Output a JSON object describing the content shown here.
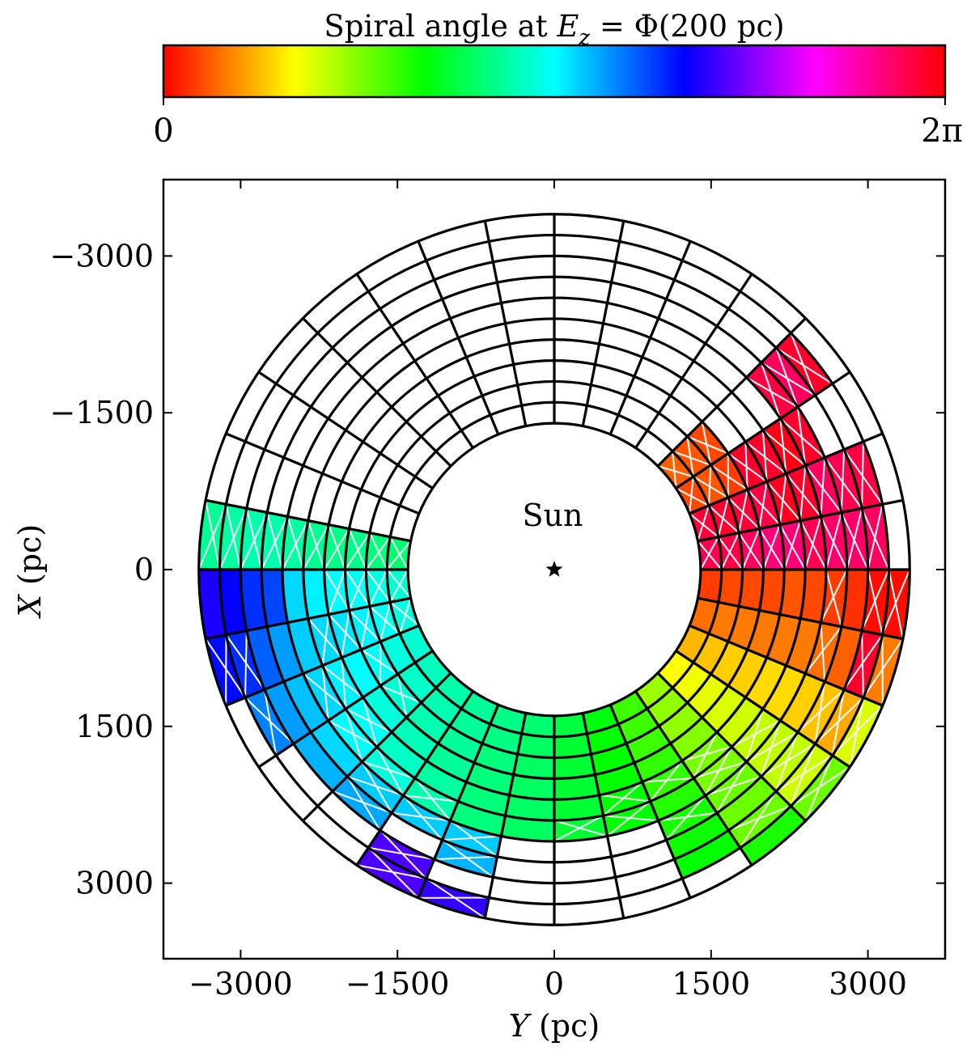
{
  "chart_data": {
    "type": "heatmap",
    "title": "Spiral angle at E_z = Φ(200 pc)",
    "title_parts": {
      "prefix": "Spiral angle at ",
      "var": "E",
      "sub": "z",
      "suffix": " = Φ(200 pc)"
    },
    "colorbar": {
      "min_label": "0",
      "max_label": "2π",
      "range": [
        0,
        6.2832
      ],
      "colormap": "hsv",
      "stops": [
        "#ff0000",
        "#ffff00",
        "#00ff00",
        "#00ffff",
        "#0000ff",
        "#ff00ff",
        "#ff0000"
      ]
    },
    "xlabel": "Y (pc)",
    "ylabel": "X (pc)",
    "xlim": [
      -3700,
      3700
    ],
    "ylim": [
      -3500,
      3700
    ],
    "y_inverted": true,
    "xticks": [
      -3000,
      -1500,
      0,
      1500,
      3000
    ],
    "xtick_labels": [
      "−3000",
      "−1500",
      "0",
      "1500",
      "3000"
    ],
    "yticks": [
      -3000,
      -1500,
      0,
      1500,
      3000
    ],
    "ytick_labels": [
      "−3000",
      "−1500",
      "0",
      "1500",
      "3000"
    ],
    "annotation": "Sun",
    "sun_position": [
      0,
      0
    ],
    "grid": {
      "r_edges": [
        1400,
        1600,
        1800,
        2000,
        2200,
        2400,
        2600,
        2800,
        3000,
        3200,
        3400
      ],
      "n_theta": 32,
      "theta_unit": "degrees measured clockwise from +Y (right) on screen"
    },
    "cells": [
      {
        "r": 0,
        "t": 0,
        "phase": 0.25
      },
      {
        "r": 0,
        "t": 1,
        "phase": 0.45
      },
      {
        "r": 0,
        "t": 2,
        "phase": 0.75
      },
      {
        "r": 0,
        "t": 3,
        "phase": 1.05
      },
      {
        "r": 0,
        "t": 4,
        "phase": 1.45
      },
      {
        "r": 0,
        "t": 5,
        "phase": 1.85
      },
      {
        "r": 0,
        "t": 6,
        "phase": 2.15
      },
      {
        "r": 0,
        "t": 7,
        "phase": 2.35
      },
      {
        "r": 0,
        "t": 8,
        "phase": 2.55
      },
      {
        "r": 0,
        "t": 9,
        "phase": 2.65
      },
      {
        "r": 0,
        "t": 10,
        "phase": 2.72
      },
      {
        "r": 0,
        "t": 11,
        "phase": 2.8
      },
      {
        "r": 0,
        "t": 12,
        "phase": 2.88
      },
      {
        "r": 0,
        "t": 13,
        "phase": 2.96
      },
      {
        "r": 0,
        "t": 14,
        "phase": 3.02,
        "hatched": true
      },
      {
        "r": 0,
        "t": 15,
        "phase": 2.95,
        "hatched": true
      },
      {
        "r": 0,
        "t": 16,
        "phase": 2.55,
        "hatched": true
      },
      {
        "r": 1,
        "t": 0,
        "phase": 0.3
      },
      {
        "r": 1,
        "t": 1,
        "phase": 0.5
      },
      {
        "r": 1,
        "t": 2,
        "phase": 0.8
      },
      {
        "r": 1,
        "t": 3,
        "phase": 1.1
      },
      {
        "r": 1,
        "t": 4,
        "phase": 1.5
      },
      {
        "r": 1,
        "t": 5,
        "phase": 1.85
      },
      {
        "r": 1,
        "t": 6,
        "phase": 2.1
      },
      {
        "r": 1,
        "t": 7,
        "phase": 2.3
      },
      {
        "r": 1,
        "t": 8,
        "phase": 2.5
      },
      {
        "r": 1,
        "t": 9,
        "phase": 2.62
      },
      {
        "r": 1,
        "t": 10,
        "phase": 2.72
      },
      {
        "r": 1,
        "t": 11,
        "phase": 2.82
      },
      {
        "r": 1,
        "t": 12,
        "phase": 2.92
      },
      {
        "r": 1,
        "t": 13,
        "phase": 3.02
      },
      {
        "r": 1,
        "t": 14,
        "phase": 3.1,
        "hatched": true
      },
      {
        "r": 1,
        "t": 15,
        "phase": 3.05,
        "hatched": true
      },
      {
        "r": 1,
        "t": 16,
        "phase": 2.6,
        "hatched": true
      },
      {
        "r": 2,
        "t": 0,
        "phase": 0.3
      },
      {
        "r": 2,
        "t": 1,
        "phase": 0.5
      },
      {
        "r": 2,
        "t": 2,
        "phase": 0.85
      },
      {
        "r": 2,
        "t": 3,
        "phase": 1.15
      },
      {
        "r": 2,
        "t": 4,
        "phase": 1.5
      },
      {
        "r": 2,
        "t": 5,
        "phase": 1.85
      },
      {
        "r": 2,
        "t": 6,
        "phase": 2.1
      },
      {
        "r": 2,
        "t": 7,
        "phase": 2.3
      },
      {
        "r": 2,
        "t": 8,
        "phase": 2.5
      },
      {
        "r": 2,
        "t": 9,
        "phase": 2.6
      },
      {
        "r": 2,
        "t": 10,
        "phase": 2.72
      },
      {
        "r": 2,
        "t": 11,
        "phase": 2.82
      },
      {
        "r": 2,
        "t": 12,
        "phase": 2.95,
        "hatched": true
      },
      {
        "r": 2,
        "t": 13,
        "phase": 3.1,
        "hatched": true
      },
      {
        "r": 2,
        "t": 14,
        "phase": 3.2,
        "hatched": true
      },
      {
        "r": 2,
        "t": 15,
        "phase": 3.1,
        "hatched": true
      },
      {
        "r": 2,
        "t": 16,
        "phase": 2.65,
        "hatched": true
      },
      {
        "r": 3,
        "t": 0,
        "phase": 0.3
      },
      {
        "r": 3,
        "t": 1,
        "phase": 0.5
      },
      {
        "r": 3,
        "t": 2,
        "phase": 0.85
      },
      {
        "r": 3,
        "t": 3,
        "phase": 1.2
      },
      {
        "r": 3,
        "t": 4,
        "phase": 1.55
      },
      {
        "r": 3,
        "t": 5,
        "phase": 1.9
      },
      {
        "r": 3,
        "t": 6,
        "phase": 2.1
      },
      {
        "r": 3,
        "t": 7,
        "phase": 2.3
      },
      {
        "r": 3,
        "t": 8,
        "phase": 2.5
      },
      {
        "r": 3,
        "t": 9,
        "phase": 2.6
      },
      {
        "r": 3,
        "t": 10,
        "phase": 2.72
      },
      {
        "r": 3,
        "t": 11,
        "phase": 2.85
      },
      {
        "r": 3,
        "t": 12,
        "phase": 3.0
      },
      {
        "r": 3,
        "t": 13,
        "phase": 3.15
      },
      {
        "r": 3,
        "t": 14,
        "phase": 3.25,
        "hatched": true
      },
      {
        "r": 3,
        "t": 15,
        "phase": 3.15,
        "hatched": true
      },
      {
        "r": 3,
        "t": 16,
        "phase": 2.65,
        "hatched": true
      },
      {
        "r": 4,
        "t": 0,
        "phase": 0.35
      },
      {
        "r": 4,
        "t": 1,
        "phase": 0.5
      },
      {
        "r": 4,
        "t": 2,
        "phase": 0.9
      },
      {
        "r": 4,
        "t": 3,
        "phase": 1.25
      },
      {
        "r": 4,
        "t": 4,
        "phase": 1.6,
        "hatched": true
      },
      {
        "r": 4,
        "t": 5,
        "phase": 1.9,
        "hatched": true
      },
      {
        "r": 4,
        "t": 6,
        "phase": 2.1,
        "hatched": true
      },
      {
        "r": 4,
        "t": 7,
        "phase": 2.3
      },
      {
        "r": 4,
        "t": 8,
        "phase": 2.5
      },
      {
        "r": 4,
        "t": 9,
        "phase": 2.6
      },
      {
        "r": 4,
        "t": 10,
        "phase": 2.75
      },
      {
        "r": 4,
        "t": 11,
        "phase": 2.9
      },
      {
        "r": 4,
        "t": 12,
        "phase": 3.1,
        "hatched": true
      },
      {
        "r": 4,
        "t": 13,
        "phase": 3.2,
        "hatched": true
      },
      {
        "r": 4,
        "t": 14,
        "phase": 3.3,
        "hatched": true
      },
      {
        "r": 4,
        "t": 15,
        "phase": 3.2
      },
      {
        "r": 4,
        "t": 16,
        "phase": 2.7,
        "hatched": true
      },
      {
        "r": 5,
        "t": 0,
        "phase": 0.3
      },
      {
        "r": 5,
        "t": 1,
        "phase": 0.5
      },
      {
        "r": 5,
        "t": 2,
        "phase": 0.9
      },
      {
        "r": 5,
        "t": 3,
        "phase": 1.3,
        "hatched": true
      },
      {
        "r": 5,
        "t": 4,
        "phase": 1.6,
        "hatched": true
      },
      {
        "r": 5,
        "t": 5,
        "phase": 1.95
      },
      {
        "r": 5,
        "t": 6,
        "phase": 2.1,
        "hatched": true
      },
      {
        "r": 5,
        "t": 7,
        "phase": 2.3,
        "hatched": true
      },
      {
        "r": 5,
        "t": 8,
        "phase": 2.5
      },
      {
        "r": 5,
        "t": 9,
        "phase": 2.6
      },
      {
        "r": 5,
        "t": 10,
        "phase": 2.8,
        "hatched": true
      },
      {
        "r": 5,
        "t": 11,
        "phase": 3.0,
        "hatched": true
      },
      {
        "r": 5,
        "t": 12,
        "phase": 3.15,
        "hatched": true
      },
      {
        "r": 5,
        "t": 13,
        "phase": 3.3,
        "hatched": true
      },
      {
        "r": 5,
        "t": 14,
        "phase": 3.35
      },
      {
        "r": 5,
        "t": 15,
        "phase": 3.3
      },
      {
        "r": 5,
        "t": 16,
        "phase": 2.75,
        "hatched": true
      },
      {
        "r": 6,
        "t": 0,
        "phase": 0.25,
        "hatched": true
      },
      {
        "r": 6,
        "t": 1,
        "phase": 0.45,
        "hatched": true
      },
      {
        "r": 6,
        "t": 2,
        "phase": 0.85
      },
      {
        "r": 6,
        "t": 3,
        "phase": 1.3,
        "hatched": true
      },
      {
        "r": 6,
        "t": 4,
        "phase": 1.65,
        "hatched": true
      },
      {
        "r": 6,
        "t": 5,
        "phase": 2.0,
        "hatched": true
      },
      {
        "r": 6,
        "t": 9,
        "phase": 3.35,
        "hatched": true
      },
      {
        "r": 6,
        "t": 10,
        "phase": 3.35,
        "hatched": true
      },
      {
        "r": 6,
        "t": 11,
        "phase": 3.35,
        "hatched": true
      },
      {
        "r": 6,
        "t": 12,
        "phase": 3.3
      },
      {
        "r": 6,
        "t": 13,
        "phase": 3.4
      },
      {
        "r": 6,
        "t": 14,
        "phase": 3.55
      },
      {
        "r": 6,
        "t": 15,
        "phase": 3.9
      },
      {
        "r": 6,
        "t": 16,
        "phase": 2.8,
        "hatched": true
      },
      {
        "r": 7,
        "t": 0,
        "phase": 0.2
      },
      {
        "r": 7,
        "t": 1,
        "phase": 0.4
      },
      {
        "r": 7,
        "t": 2,
        "phase": 0.8,
        "hatched": true
      },
      {
        "r": 7,
        "t": 3,
        "phase": 1.3,
        "hatched": true
      },
      {
        "r": 7,
        "t": 4,
        "phase": 1.65
      },
      {
        "r": 7,
        "t": 5,
        "phase": 2.05
      },
      {
        "r": 7,
        "t": 9,
        "phase": 3.45,
        "hatched": true
      },
      {
        "r": 7,
        "t": 11,
        "phase": 3.5,
        "hatched": true
      },
      {
        "r": 7,
        "t": 12,
        "phase": 3.45
      },
      {
        "r": 7,
        "t": 13,
        "phase": 3.55
      },
      {
        "r": 7,
        "t": 14,
        "phase": 3.8
      },
      {
        "r": 7,
        "t": 15,
        "phase": 4.0
      },
      {
        "r": 7,
        "t": 16,
        "phase": 2.8,
        "hatched": true
      },
      {
        "r": 8,
        "t": 0,
        "phase": 0.05,
        "hatched": true
      },
      {
        "r": 8,
        "t": 1,
        "phase": 6.1,
        "hatched": true
      },
      {
        "r": 8,
        "t": 2,
        "phase": 0.7,
        "hatched": true
      },
      {
        "r": 8,
        "t": 3,
        "phase": 1.25,
        "hatched": true
      },
      {
        "r": 8,
        "t": 4,
        "phase": 1.65,
        "hatched": true
      },
      {
        "r": 8,
        "t": 5,
        "phase": 2.1
      },
      {
        "r": 8,
        "t": 10,
        "phase": 4.5,
        "hatched": true
      },
      {
        "r": 8,
        "t": 13,
        "phase": 3.65,
        "hatched": true
      },
      {
        "r": 8,
        "t": 14,
        "phase": 4.0,
        "hatched": true
      },
      {
        "r": 8,
        "t": 15,
        "phase": 4.2
      },
      {
        "r": 8,
        "t": 16,
        "phase": 2.75,
        "hatched": true
      },
      {
        "r": 9,
        "t": 0,
        "phase": 0.05,
        "hatched": true
      },
      {
        "r": 9,
        "t": 1,
        "phase": 0.5,
        "hatched": true
      },
      {
        "r": 9,
        "t": 2,
        "phase": 1.2,
        "hatched": true
      },
      {
        "r": 9,
        "t": 3,
        "phase": 1.65,
        "hatched": true
      },
      {
        "r": 9,
        "t": 4,
        "phase": 2.0
      },
      {
        "r": 9,
        "t": 9,
        "phase": 4.4,
        "hatched": true
      },
      {
        "r": 9,
        "t": 10,
        "phase": 4.5,
        "hatched": true
      },
      {
        "r": 9,
        "t": 14,
        "phase": 4.15,
        "hatched": true
      },
      {
        "r": 9,
        "t": 15,
        "phase": 4.3
      },
      {
        "r": 9,
        "t": 16,
        "phase": 2.7,
        "hatched": true
      },
      {
        "r": 10,
        "t": 0,
        "phase": 0.35,
        "hatched": true
      },
      {
        "r": 10,
        "t": 1,
        "phase": 0.55,
        "hatched": true
      },
      {
        "r": 10,
        "t": 9,
        "phase": 4.7,
        "hatched": true
      },
      {
        "r": 10,
        "t": 10,
        "phase": 4.6,
        "hatched": true
      },
      {
        "r": 10,
        "t": 12,
        "phase": 4.85,
        "hatched": true
      },
      {
        "r": 10,
        "t": 16,
        "phase": 2.5,
        "hatched": true
      },
      {
        "r": 0,
        "t": 31,
        "phase": 5.95,
        "hatched": true
      },
      {
        "r": 1,
        "t": 31,
        "phase": 6.0,
        "hatched": true
      },
      {
        "r": 2,
        "t": 31,
        "phase": 5.9,
        "hatched": true
      },
      {
        "r": 3,
        "t": 31,
        "phase": 5.8,
        "hatched": true
      },
      {
        "r": 4,
        "t": 31,
        "phase": 5.8,
        "hatched": true
      },
      {
        "r": 5,
        "t": 31,
        "phase": 5.95,
        "hatched": true
      },
      {
        "r": 6,
        "t": 31,
        "phase": 5.85,
        "hatched": true
      },
      {
        "r": 7,
        "t": 31,
        "phase": 5.85,
        "hatched": true
      },
      {
        "r": 8,
        "t": 31,
        "phase": 5.9,
        "hatched": true
      },
      {
        "r": 8,
        "t": 30,
        "phase": 6.0,
        "hatched": true
      },
      {
        "r": 7,
        "t": 30,
        "phase": 5.95,
        "hatched": true
      },
      {
        "r": 6,
        "t": 30,
        "phase": 5.9,
        "hatched": true
      },
      {
        "r": 5,
        "t": 30,
        "phase": 6.1,
        "hatched": true
      },
      {
        "r": 4,
        "t": 30,
        "phase": 6.15,
        "hatched": true
      },
      {
        "r": 3,
        "t": 30,
        "phase": 6.0,
        "hatched": true
      },
      {
        "r": 2,
        "t": 30,
        "phase": 6.05,
        "hatched": true
      },
      {
        "r": 1,
        "t": 30,
        "phase": 6.1,
        "hatched": true
      },
      {
        "r": 0,
        "t": 30,
        "phase": 6.05,
        "hatched": true
      },
      {
        "r": 0,
        "t": 29,
        "phase": 0.3,
        "hatched": true
      },
      {
        "r": 1,
        "t": 29,
        "phase": 0.35,
        "hatched": true
      },
      {
        "r": 2,
        "t": 29,
        "phase": 0.25,
        "hatched": true
      },
      {
        "r": 3,
        "t": 29,
        "phase": 6.1,
        "hatched": true
      },
      {
        "r": 4,
        "t": 29,
        "phase": 6.1,
        "hatched": true
      },
      {
        "r": 5,
        "t": 29,
        "phase": 6.2,
        "hatched": true
      },
      {
        "r": 6,
        "t": 29,
        "phase": 6.1,
        "hatched": true
      },
      {
        "r": 0,
        "t": 28,
        "phase": 0.4,
        "hatched": true
      },
      {
        "r": 1,
        "t": 28,
        "phase": 0.35,
        "hatched": true
      },
      {
        "r": 2,
        "t": 28,
        "phase": 0.3,
        "hatched": true
      },
      {
        "r": 6,
        "t": 28,
        "phase": 6.0,
        "hatched": true
      },
      {
        "r": 7,
        "t": 28,
        "phase": 5.9,
        "hatched": true
      },
      {
        "r": 8,
        "t": 28,
        "phase": 6.1,
        "hatched": true
      }
    ]
  }
}
